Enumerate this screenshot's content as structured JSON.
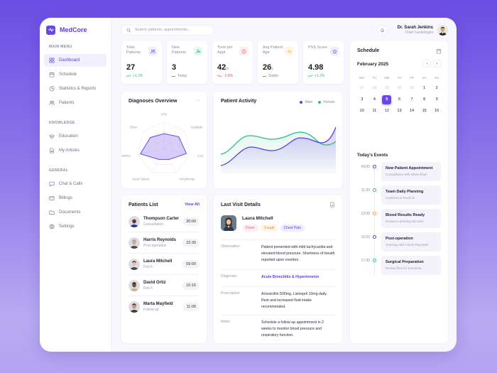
{
  "app": {
    "name": "MedCore"
  },
  "sidebar": {
    "sections": [
      {
        "label": "MAIN MENU",
        "items": [
          {
            "label": "Dashboard",
            "icon": "dashboard-icon",
            "active": true
          },
          {
            "label": "Schedule",
            "icon": "calendar-icon"
          },
          {
            "label": "Statistics & Reports",
            "icon": "pie-chart-icon"
          },
          {
            "label": "Patients",
            "icon": "users-icon"
          }
        ]
      },
      {
        "label": "KNOWLEDGE",
        "items": [
          {
            "label": "Education",
            "icon": "graduation-cap-icon"
          },
          {
            "label": "My Articles",
            "icon": "document-icon"
          }
        ]
      },
      {
        "label": "GENERAL",
        "items": [
          {
            "label": "Chat & Calls",
            "icon": "chat-icon"
          },
          {
            "label": "Billings",
            "icon": "credit-card-icon"
          },
          {
            "label": "Documents",
            "icon": "folder-icon"
          },
          {
            "label": "Settings",
            "icon": "gear-icon"
          }
        ]
      }
    ]
  },
  "topbar": {
    "search_placeholder": "Search patients, appointments...",
    "user_name": "Dr. Sarah Jenkins",
    "user_role": "Chief Cardiologist"
  },
  "stats": [
    {
      "label": "Total Patients",
      "value": "27",
      "unit": "",
      "trend": "+1.2%",
      "trend_dir": "up",
      "icon": "users-icon",
      "icon_bg": "#f1eefc",
      "icon_color": "#6b48e6"
    },
    {
      "label": "New Patients",
      "value": "3",
      "unit": "",
      "trend": "Today",
      "trend_dir": "flat",
      "icon": "user-plus-icon",
      "icon_bg": "#e8f8f1",
      "icon_color": "#22b07d"
    },
    {
      "label": "Time per Appt",
      "value": "42",
      "unit": "m",
      "trend": "-3.8%",
      "trend_dir": "down",
      "icon": "clock-icon",
      "icon_bg": "#fdeef1",
      "icon_color": "#ef5470"
    },
    {
      "label": "Avg Patient Age",
      "value": "26",
      "unit": "y",
      "trend": "Stable",
      "trend_dir": "flat",
      "icon": "pulse-icon",
      "icon_bg": "#fff6e6",
      "icon_color": "#f2a93b"
    },
    {
      "label": "PSS Score",
      "value": "4.98",
      "unit": "",
      "trend": "+1.2%",
      "trend_dir": "up",
      "icon": "star-icon",
      "icon_bg": "#efedfc",
      "icon_color": "#6b48e6"
    }
  ],
  "diagnoses": {
    "title": "Diagnoses Overview",
    "more_label": "···",
    "axes": [
      "HTN",
      "Dyslipids",
      "CAC",
      "Arrhythmias",
      "Heart Failure",
      "Post-MI/PCI",
      "Other"
    ],
    "values": [
      0.55,
      0.7,
      0.85,
      0.45,
      0.45,
      0.9,
      0.65
    ]
  },
  "activity": {
    "title": "Patient Activity",
    "legend": [
      {
        "label": "Male",
        "color": "#5b3fd9"
      },
      {
        "label": "Female",
        "color": "#2bbd8c"
      }
    ]
  },
  "patients_list": {
    "title": "Patients List",
    "view_all": "View All",
    "rows": [
      {
        "name": "Thompson Carter",
        "sub": "Consultation",
        "time": "20:00",
        "skin": "#5a3d2e",
        "hair": "#cfcfcf",
        "shirt": "#1e3a8a"
      },
      {
        "name": "Harris Reynolds",
        "sub": "Post-operation",
        "time": "22:30",
        "skin": "#d8a98c",
        "hair": "#9b9b9b",
        "shirt": "#4a4a4a"
      },
      {
        "name": "Laura Mitchell",
        "sub": "Feb 6",
        "time": "09:00",
        "skin": "#e6c1a8",
        "hair": "#3d2a1e",
        "shirt": "#3c4a5e"
      },
      {
        "name": "David Ortiz",
        "sub": "Feb 6",
        "time": "10:15",
        "skin": "#7a4f35",
        "hair": "#1c120c",
        "shirt": "#d1b08c"
      },
      {
        "name": "Marta Mayfield",
        "sub": "Follow-up",
        "time": "11:00",
        "skin": "#c49778",
        "hair": "#2a2320",
        "shirt": "#3d3d3d"
      }
    ]
  },
  "last_visit": {
    "title": "Last Visit Details",
    "patient_name": "Laura Mitchell",
    "tags": [
      {
        "label": "Fever",
        "bg": "#fdeef1",
        "color": "#ef5470"
      },
      {
        "label": "Cough",
        "bg": "#fff6ea",
        "color": "#e8823a"
      },
      {
        "label": "Chest Pain",
        "bg": "#efedfc",
        "color": "#5b3fd9"
      }
    ],
    "rows": [
      {
        "key": "Observation",
        "value": "Patient presented with mild tachycardia and elevated blood pressure. Shortness of breath reported upon exertion.",
        "link": false
      },
      {
        "key": "Diagnosis",
        "value": "Acute Bronchitis & Hypertension",
        "link": true
      },
      {
        "key": "Prescription",
        "value": "Amoxicillin 500mg, Lisinopril 10mg daily. Rest and increased fluid intake recommended.",
        "link": false
      },
      {
        "key": "Notes",
        "value": "Schedule a follow-up appointment in 2 weeks to monitor blood pressure and respiratory function.",
        "link": false
      }
    ]
  },
  "schedule": {
    "title": "Schedule",
    "month": "February 2025",
    "prev": "‹",
    "next": "›",
    "weekdays": [
      "MO",
      "TU",
      "WE",
      "TH",
      "FR",
      "SA",
      "SU"
    ],
    "days": [
      {
        "d": "27",
        "muted": true
      },
      {
        "d": "28",
        "muted": true
      },
      {
        "d": "29",
        "muted": true
      },
      {
        "d": "30",
        "muted": true
      },
      {
        "d": "31",
        "muted": true
      },
      {
        "d": "1"
      },
      {
        "d": "2"
      },
      {
        "d": "3"
      },
      {
        "d": "4"
      },
      {
        "d": "5",
        "selected": true
      },
      {
        "d": "6"
      },
      {
        "d": "7"
      },
      {
        "d": "8"
      },
      {
        "d": "9"
      },
      {
        "d": "10"
      },
      {
        "d": "11"
      },
      {
        "d": "12"
      },
      {
        "d": "13"
      },
      {
        "d": "14"
      },
      {
        "d": "15"
      },
      {
        "d": "16"
      }
    ],
    "events_title": "Today's Events",
    "events": [
      {
        "time": "09:00",
        "title": "New Patient Appointment",
        "sub": "Consultation with Olivia Rhye",
        "color": "#5b3fd9"
      },
      {
        "time": "11:30",
        "title": "Team Daily Planning",
        "sub": "Conference Room B",
        "color": "#2bbd8c"
      },
      {
        "time": "13:00",
        "title": "Blood Results Ready",
        "sub": "Review 5 pending lab tests",
        "color": "#f2a93b"
      },
      {
        "time": "15:00",
        "title": "Post-operation",
        "sub": "Checkup with Harris Reynolds",
        "color": "#5b3fd9"
      },
      {
        "time": "17:30",
        "title": "Surgical Preparation",
        "sub": "Review files for tomorrow",
        "color": "#2bbd8c"
      }
    ]
  }
}
